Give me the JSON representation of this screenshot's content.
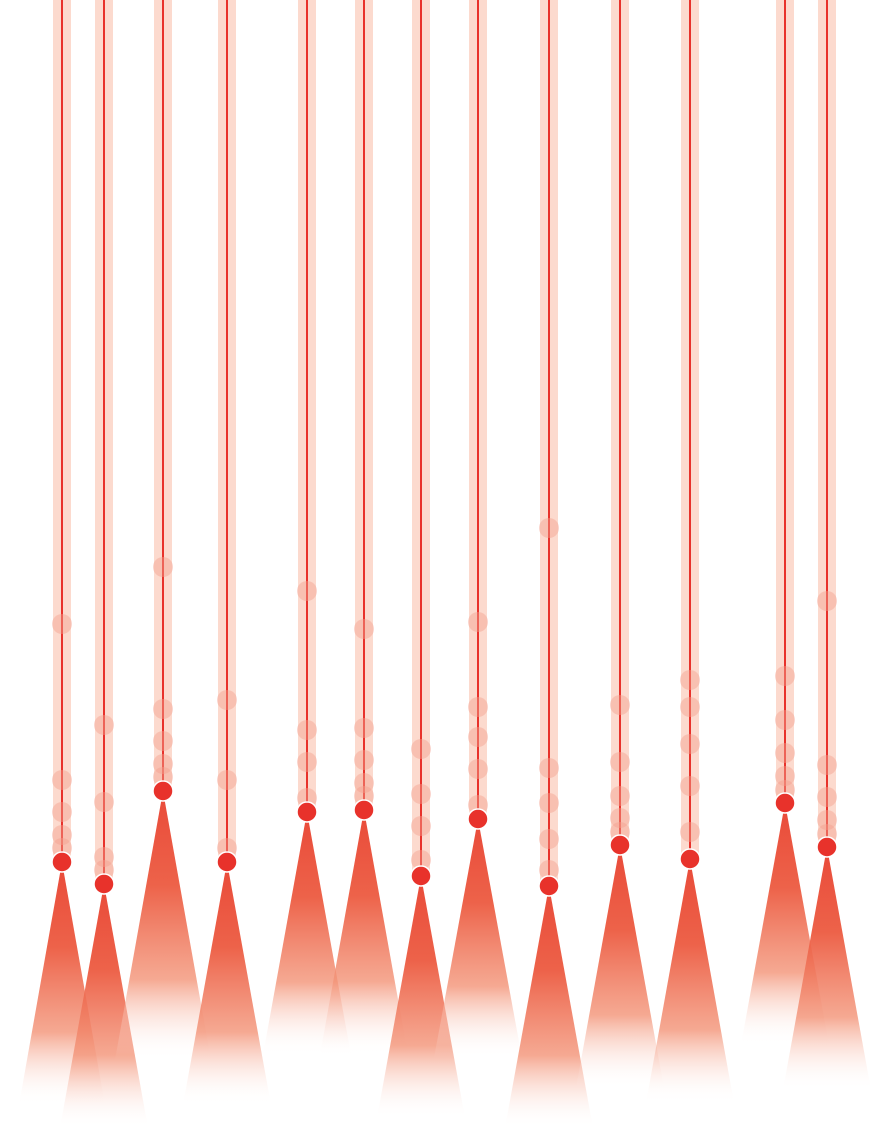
{
  "palette": {
    "background": "#ffffff",
    "band": "#fbd3c6",
    "line": "#e8322b",
    "dot": "#e8322b",
    "ghost_dot": "#f4a08e",
    "cone_top": "#e8402e",
    "cone_mid": "#f07e62",
    "cone_bottom": "#ffffff"
  },
  "icons": {
    "marker": "filled-circle",
    "cone": "triangle-gradient"
  }
}
